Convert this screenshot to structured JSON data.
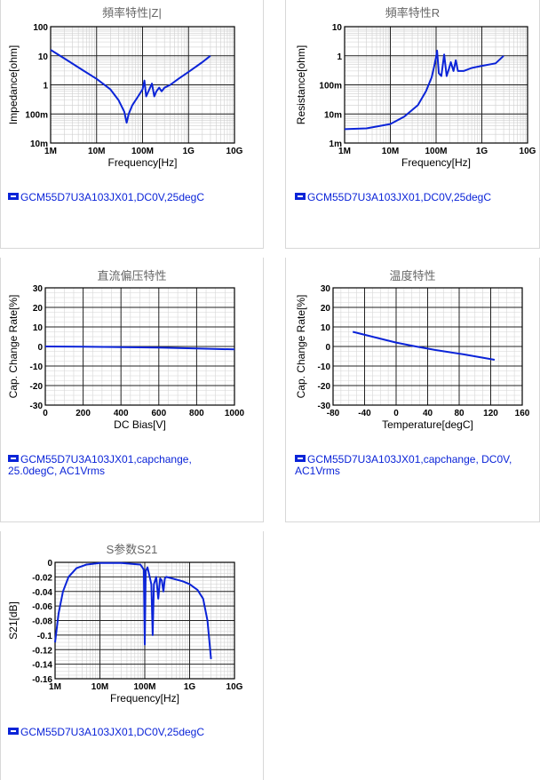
{
  "chart_data": [
    {
      "type": "line",
      "title": "頻率特性|Z|",
      "xlabel": "Frequency[Hz]",
      "ylabel": "Impedance[ohm]",
      "xscale": "log",
      "yscale": "log",
      "xlim": [
        1000000,
        10000000000
      ],
      "ylim": [
        0.01,
        100
      ],
      "xticks": [
        "1M",
        "10M",
        "100M",
        "1G",
        "10G"
      ],
      "yticks": [
        "10m",
        "100m",
        "1",
        "10",
        "100"
      ],
      "grid": true,
      "legend": "bottom-left",
      "series": [
        {
          "name": "GCM55D7U3A103JX01,DC0V,25degC",
          "color": "#0b24d8",
          "x": [
            1000000,
            2000000,
            5000000,
            10000000,
            20000000,
            30000000,
            40000000,
            45000000,
            50000000,
            60000000,
            80000000,
            100000000,
            110000000,
            120000000,
            140000000,
            160000000,
            180000000,
            200000000,
            230000000,
            260000000,
            300000000,
            400000000,
            600000000,
            1000000000,
            2000000000,
            3000000000
          ],
          "y": [
            16,
            8,
            3.2,
            1.6,
            0.7,
            0.3,
            0.12,
            0.05,
            0.1,
            0.2,
            0.4,
            0.7,
            1.4,
            0.4,
            0.7,
            1.1,
            0.4,
            0.6,
            0.8,
            0.6,
            0.8,
            1.0,
            1.6,
            2.8,
            6,
            10
          ]
        }
      ]
    },
    {
      "type": "line",
      "title": "頻率特性R",
      "xlabel": "Frequency[Hz]",
      "ylabel": "Resistance[ohm]",
      "xscale": "log",
      "yscale": "log",
      "xlim": [
        1000000,
        10000000000
      ],
      "ylim": [
        0.001,
        10
      ],
      "xticks": [
        "1M",
        "10M",
        "100M",
        "1G",
        "10G"
      ],
      "yticks": [
        "1m",
        "10m",
        "100m",
        "1",
        "10"
      ],
      "grid": true,
      "legend": "bottom-left",
      "series": [
        {
          "name": "GCM55D7U3A103JX01,DC0V,25degC",
          "color": "#0b24d8",
          "x": [
            1000000,
            3000000,
            10000000,
            20000000,
            40000000,
            60000000,
            80000000,
            90000000,
            100000000,
            105000000,
            115000000,
            130000000,
            150000000,
            170000000,
            190000000,
            210000000,
            240000000,
            270000000,
            300000000,
            400000000,
            600000000,
            1000000000,
            2000000000,
            3000000000
          ],
          "y": [
            0.003,
            0.0032,
            0.0045,
            0.008,
            0.02,
            0.06,
            0.18,
            0.4,
            0.9,
            1.5,
            0.25,
            0.2,
            1.1,
            0.2,
            0.35,
            0.6,
            0.3,
            0.7,
            0.3,
            0.3,
            0.38,
            0.45,
            0.55,
            1.0
          ]
        }
      ]
    },
    {
      "type": "line",
      "title": "直流偏压特性",
      "xlabel": "DC Bias[V]",
      "ylabel": "Cap. Change Rate[%]",
      "xlim": [
        0,
        1000
      ],
      "ylim": [
        -30,
        30
      ],
      "xticks": [
        "0",
        "200",
        "400",
        "600",
        "800",
        "1000"
      ],
      "yticks": [
        "-30",
        "-20",
        "-10",
        "0",
        "10",
        "20",
        "30"
      ],
      "grid": true,
      "legend": "bottom-left",
      "series": [
        {
          "name": "GCM55D7U3A103JX01,capchange,\n25.0degC, AC1Vrms",
          "color": "#0b24d8",
          "x": [
            0,
            200,
            400,
            600,
            800,
            1000
          ],
          "y": [
            0,
            -0.1,
            -0.3,
            -0.6,
            -1.0,
            -1.5
          ]
        }
      ]
    },
    {
      "type": "line",
      "title": "温度特性",
      "xlabel": "Temperature[degC]",
      "ylabel": "Cap. Change Rate[%]",
      "xlim": [
        -80,
        160
      ],
      "ylim": [
        -30,
        30
      ],
      "xticks": [
        "-80",
        "-40",
        "0",
        "40",
        "80",
        "120",
        "160"
      ],
      "yticks": [
        "-30",
        "-20",
        "-10",
        "0",
        "10",
        "20",
        "30"
      ],
      "grid": true,
      "legend": "bottom-left",
      "series": [
        {
          "name": "GCM55D7U3A103JX01,capchange, DC0V,\nAC1Vrms",
          "color": "#0b24d8",
          "x": [
            -55,
            -25,
            0,
            25,
            50,
            85,
            125
          ],
          "y": [
            7.5,
            4.5,
            2,
            0,
            -1.8,
            -4,
            -6.8
          ]
        }
      ]
    },
    {
      "type": "line",
      "title": "S参数S21",
      "xlabel": "Frequency[Hz]",
      "ylabel": "S21[dB]",
      "xscale": "log",
      "xlim": [
        1000000,
        10000000000
      ],
      "ylim": [
        -0.16,
        0
      ],
      "xticks": [
        "1M",
        "10M",
        "100M",
        "1G",
        "10G"
      ],
      "yticks": [
        "-0.16",
        "-0.14",
        "-0.12",
        "-0.1",
        "-0.08",
        "-0.06",
        "-0.04",
        "-0.02",
        "0"
      ],
      "grid": true,
      "legend": "bottom-left",
      "series": [
        {
          "name": "GCM55D7U3A103JX01,DC0V,25degC",
          "color": "#0b24d8",
          "x": [
            1000000,
            1200000,
            1500000,
            2000000,
            3000000,
            5000000,
            10000000,
            30000000,
            80000000,
            95000000,
            100000000,
            105000000,
            115000000,
            140000000,
            150000000,
            160000000,
            180000000,
            200000000,
            220000000,
            240000000,
            260000000,
            280000000,
            300000000,
            400000000,
            700000000,
            1000000000,
            1500000000,
            2000000000,
            2500000000,
            3000000000
          ],
          "y": [
            -0.11,
            -0.07,
            -0.04,
            -0.02,
            -0.008,
            -0.003,
            -0.001,
            -0.001,
            -0.003,
            -0.01,
            -0.113,
            -0.012,
            -0.007,
            -0.03,
            -0.1,
            -0.03,
            -0.02,
            -0.05,
            -0.022,
            -0.025,
            -0.04,
            -0.022,
            -0.02,
            -0.022,
            -0.026,
            -0.03,
            -0.038,
            -0.05,
            -0.08,
            -0.133
          ]
        }
      ]
    }
  ]
}
